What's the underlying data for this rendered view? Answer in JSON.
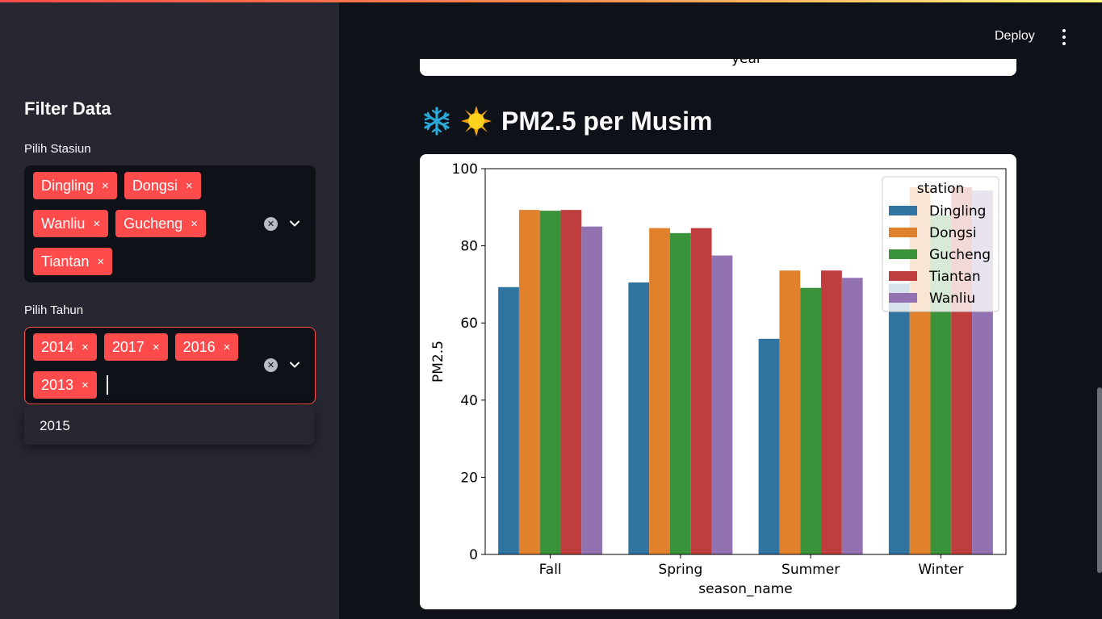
{
  "sidebar": {
    "title": "Filter Data",
    "station_filter": {
      "label": "Pilih Stasiun",
      "selected": [
        "Dingling",
        "Dongsi",
        "Wanliu",
        "Gucheng",
        "Tiantan"
      ]
    },
    "year_filter": {
      "label": "Pilih Tahun",
      "selected": [
        "2014",
        "2017",
        "2016",
        "2013"
      ],
      "dropdown_options": [
        "2015"
      ]
    },
    "tag_remove_glyph": "×"
  },
  "header": {
    "deploy_label": "Deploy"
  },
  "previous_chart": {
    "xlabel_fragment": "year"
  },
  "section": {
    "title": "PM2.5 per Musim",
    "icons": [
      "snowflake-icon",
      "sun-icon"
    ]
  },
  "colors": {
    "accent": "#ff4b4b",
    "background": "#0e1117",
    "sidebar": "#262730"
  },
  "chart_data": {
    "type": "bar",
    "categories": [
      "Fall",
      "Spring",
      "Summer",
      "Winter"
    ],
    "series": [
      {
        "name": "Dingling",
        "color": "#3274a1",
        "values": [
          69.3,
          70.5,
          55.9,
          70.2
        ]
      },
      {
        "name": "Dongsi",
        "color": "#e1812c",
        "values": [
          89.3,
          84.6,
          73.6,
          95.2
        ]
      },
      {
        "name": "Gucheng",
        "color": "#3a923a",
        "values": [
          89.1,
          83.3,
          69.1,
          88.0
        ]
      },
      {
        "name": "Tiantan",
        "color": "#c03d3e",
        "values": [
          89.3,
          84.6,
          73.6,
          95.2
        ]
      },
      {
        "name": "Wanliu",
        "color": "#9372b2",
        "values": [
          85.0,
          77.5,
          71.7,
          94.3
        ]
      }
    ],
    "title": "",
    "xlabel": "season_name",
    "ylabel": "PM2.5",
    "ylim": [
      0,
      100
    ],
    "yticks": [
      0,
      20,
      40,
      60,
      80,
      100
    ],
    "legend_title": "station",
    "legend_position": "upper-right",
    "grid": false
  }
}
